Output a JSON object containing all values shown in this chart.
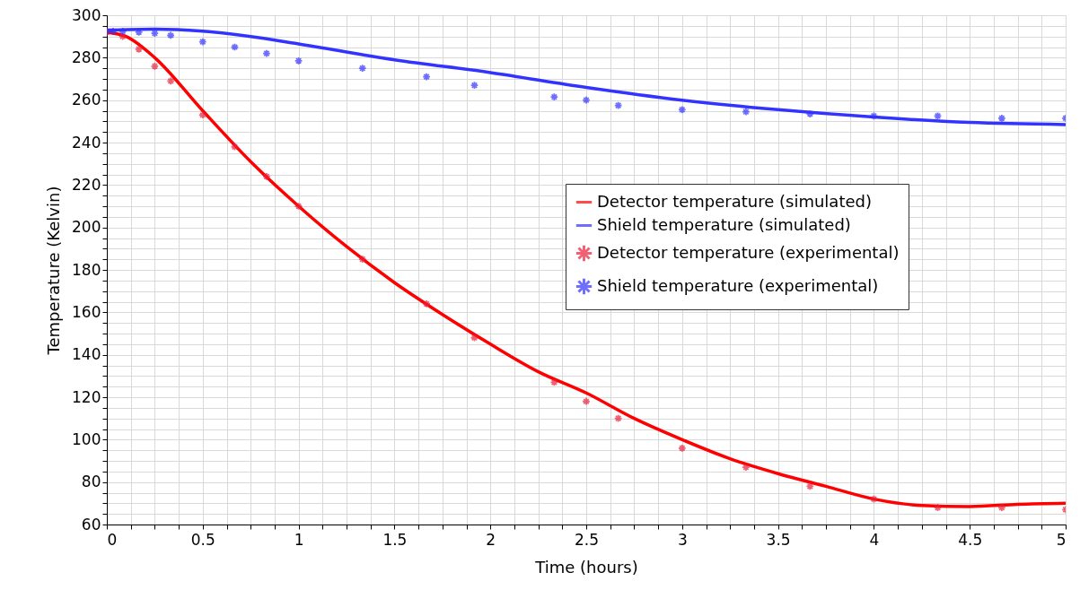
{
  "chart_data": {
    "type": "line",
    "xlabel": "Time (hours)",
    "ylabel": "Temperature (Kelvin)",
    "series": [
      {
        "name": "Detector temperature (simulated)",
        "marker": "none",
        "color": "#ff0000",
        "x": [
          0,
          0.1,
          0.25,
          0.5,
          0.75,
          1,
          1.25,
          1.5,
          1.75,
          2,
          2.25,
          2.5,
          2.75,
          3,
          3.25,
          3.5,
          3.75,
          4,
          4.25,
          4.5,
          4.75,
          5
        ],
        "values": [
          292,
          290,
          280,
          255,
          231,
          210,
          191,
          174,
          159,
          145,
          132,
          122,
          110,
          100,
          91,
          84,
          78,
          72,
          69,
          68.5,
          69.5,
          70
        ]
      },
      {
        "name": "Shield temperature (simulated)",
        "marker": "none",
        "color": "#3333ff",
        "x": [
          0,
          0.25,
          0.5,
          0.75,
          1,
          1.5,
          2,
          2.5,
          3,
          3.5,
          4,
          4.5,
          5
        ],
        "values": [
          293,
          293.5,
          292.5,
          290,
          286.5,
          279,
          273,
          266,
          260,
          255.5,
          252,
          249.5,
          248.5
        ]
      },
      {
        "name": "Detector temperature (experimental)",
        "type": "scatter",
        "marker": "cross",
        "color": "#e8213a",
        "x": [
          0,
          0.083,
          0.167,
          0.25,
          0.333,
          0.5,
          0.667,
          0.833,
          1,
          1.333,
          1.667,
          1.917,
          2.333,
          2.5,
          2.667,
          3,
          3.333,
          3.667,
          4,
          4.333,
          4.667,
          5
        ],
        "values": [
          292,
          290,
          284,
          276,
          269,
          253,
          238,
          224,
          210,
          185,
          164,
          148,
          127,
          118,
          110,
          96,
          87,
          78,
          72,
          68,
          68,
          67
        ]
      },
      {
        "name": "Shield temperature (experimental)",
        "type": "scatter",
        "marker": "cross",
        "color": "#3333ff",
        "x": [
          0,
          0.033,
          0.083,
          0.167,
          0.25,
          0.333,
          0.5,
          0.667,
          0.833,
          1,
          1.333,
          1.667,
          1.917,
          2.333,
          2.5,
          2.667,
          3,
          3.333,
          3.667,
          4,
          4.333,
          4.667,
          5
        ],
        "values": [
          292.5,
          292.5,
          292.5,
          292,
          291.5,
          290.5,
          287.5,
          285,
          282,
          278.5,
          275,
          271,
          267,
          261.5,
          260,
          257.5,
          255.5,
          254.5,
          253.5,
          252.5,
          252.5,
          251.5,
          251.5
        ]
      }
    ],
    "line_style": "solid",
    "grid": true,
    "legend": "right",
    "xlim": [
      0,
      5
    ],
    "xticks": [
      0,
      {
        "value": 0.125,
        "label": null
      },
      {
        "value": 0.25,
        "label": null
      },
      {
        "value": 0.375,
        "label": null
      },
      0.5,
      {
        "value": 0.625,
        "label": null
      },
      {
        "value": 0.75,
        "label": null
      },
      {
        "value": 0.875,
        "label": null
      },
      1,
      {
        "value": 1.125,
        "label": null
      },
      {
        "value": 1.25,
        "label": null
      },
      {
        "value": 1.375,
        "label": null
      },
      1.5,
      {
        "value": 1.625,
        "label": null
      },
      {
        "value": 1.75,
        "label": null
      },
      {
        "value": 1.875,
        "label": null
      },
      2,
      {
        "value": 2.125,
        "label": null
      },
      {
        "value": 2.25,
        "label": null
      },
      {
        "value": 2.375,
        "label": null
      },
      2.5,
      {
        "value": 2.625,
        "label": null
      },
      {
        "value": 2.75,
        "label": null
      },
      {
        "value": 2.875,
        "label": null
      },
      3,
      {
        "value": 3.125,
        "label": null
      },
      {
        "value": 3.25,
        "label": null
      },
      {
        "value": 3.375,
        "label": null
      },
      3.5,
      {
        "value": 3.625,
        "label": null
      },
      {
        "value": 3.75,
        "label": null
      },
      {
        "value": 3.875,
        "label": null
      },
      4,
      {
        "value": 4.125,
        "label": null
      },
      {
        "value": 4.25,
        "label": null
      },
      {
        "value": 4.375,
        "label": null
      },
      4.5,
      {
        "value": 4.625,
        "label": null
      },
      {
        "value": 4.75,
        "label": null
      },
      {
        "value": 4.875,
        "label": null
      },
      5
    ],
    "ylim": [
      60,
      300
    ],
    "yticks": [
      60,
      {
        "value": 65,
        "label": null
      },
      {
        "value": 70,
        "label": null
      },
      {
        "value": 75,
        "label": null
      },
      80,
      {
        "value": 85,
        "label": null
      },
      {
        "value": 90,
        "label": null
      },
      {
        "value": 95,
        "label": null
      },
      100,
      {
        "value": 105,
        "label": null
      },
      {
        "value": 110,
        "label": null
      },
      {
        "value": 115,
        "label": null
      },
      120,
      {
        "value": 125,
        "label": null
      },
      {
        "value": 130,
        "label": null
      },
      {
        "value": 135,
        "label": null
      },
      140,
      {
        "value": 145,
        "label": null
      },
      {
        "value": 150,
        "label": null
      },
      {
        "value": 155,
        "label": null
      },
      160,
      {
        "value": 165,
        "label": null
      },
      {
        "value": 170,
        "label": null
      },
      {
        "value": 175,
        "label": null
      },
      180,
      {
        "value": 185,
        "label": null
      },
      {
        "value": 190,
        "label": null
      },
      {
        "value": 195,
        "label": null
      },
      200,
      {
        "value": 205,
        "label": null
      },
      {
        "value": 210,
        "label": null
      },
      {
        "value": 215,
        "label": null
      },
      220,
      {
        "value": 225,
        "label": null
      },
      {
        "value": 230,
        "label": null
      },
      {
        "value": 235,
        "label": null
      },
      240,
      {
        "value": 245,
        "label": null
      },
      {
        "value": 250,
        "label": null
      },
      {
        "value": 255,
        "label": null
      },
      260,
      {
        "value": 265,
        "label": null
      },
      {
        "value": 270,
        "label": null
      },
      {
        "value": 275,
        "label": null
      },
      280,
      {
        "value": 285,
        "label": null
      },
      {
        "value": 290,
        "label": null
      },
      {
        "value": 295,
        "label": null
      },
      300
    ]
  }
}
